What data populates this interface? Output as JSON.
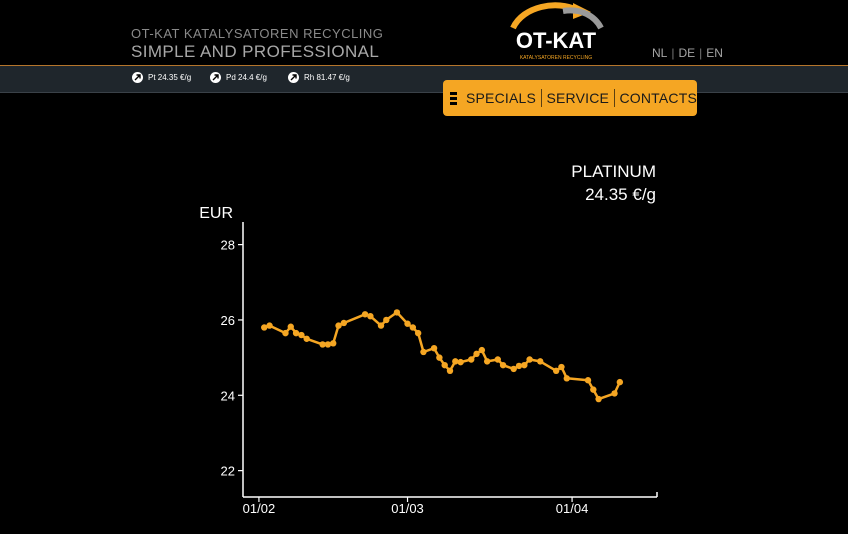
{
  "header": {
    "brand_line1": "OT-KAT KATALYSATOREN RECYCLING",
    "brand_line2": "SIMPLE AND PROFESSIONAL",
    "logo_text": "OT-KAT",
    "logo_subtext": "KATALYSATOREN RECYCLING",
    "languages": [
      "NL",
      "DE",
      "EN"
    ]
  },
  "prices": [
    {
      "label": "Pt 24.35 €/g",
      "icon": "arrow-up-right-icon"
    },
    {
      "label": "Pd 24.4 €/g",
      "icon": "arrow-up-right-icon"
    },
    {
      "label": "Rh 81.47 €/g",
      "icon": "arrow-up-right-icon"
    }
  ],
  "nav": {
    "menu_icon": "hamburger-menu-icon",
    "items": [
      "SPECIALS",
      "SERVICE",
      "CONTACTS"
    ]
  },
  "metal": {
    "name": "PLATINUM",
    "price": "24.35 €/g"
  },
  "colors": {
    "accent": "#f5a623",
    "pricebar": "#1f262c"
  },
  "chart_data": {
    "type": "line",
    "ylabel": "EUR",
    "ylim": [
      21.3,
      28.6
    ],
    "yticks": [
      22,
      24,
      26,
      28
    ],
    "xticks": [
      {
        "label": "01/02",
        "x": 0
      },
      {
        "label": "01/03",
        "x": 28
      },
      {
        "label": "01/04",
        "x": 59
      }
    ],
    "xlim": [
      -3,
      75
    ],
    "series": [
      {
        "color": "#f5a623",
        "x": [
          1,
          2,
          5,
          6,
          7,
          8,
          9,
          12,
          13,
          14,
          15,
          16,
          20,
          21,
          23,
          24,
          26,
          28,
          29,
          30,
          31,
          33,
          34,
          35,
          36,
          37,
          38,
          40,
          41,
          42,
          43,
          45,
          46,
          48,
          49,
          50,
          51,
          53,
          56,
          57,
          58,
          62,
          63,
          64,
          67,
          68
        ],
        "y": [
          25.8,
          25.85,
          25.65,
          25.82,
          25.65,
          25.6,
          25.5,
          25.35,
          25.35,
          25.38,
          25.85,
          25.92,
          26.15,
          26.1,
          25.85,
          26.0,
          26.2,
          25.9,
          25.8,
          25.65,
          25.15,
          25.25,
          25.0,
          24.8,
          24.65,
          24.9,
          24.88,
          24.95,
          25.1,
          25.2,
          24.9,
          24.95,
          24.8,
          24.7,
          24.78,
          24.8,
          24.95,
          24.9,
          24.65,
          24.75,
          24.45,
          24.4,
          24.15,
          23.9,
          24.05,
          24.35
        ]
      }
    ]
  }
}
